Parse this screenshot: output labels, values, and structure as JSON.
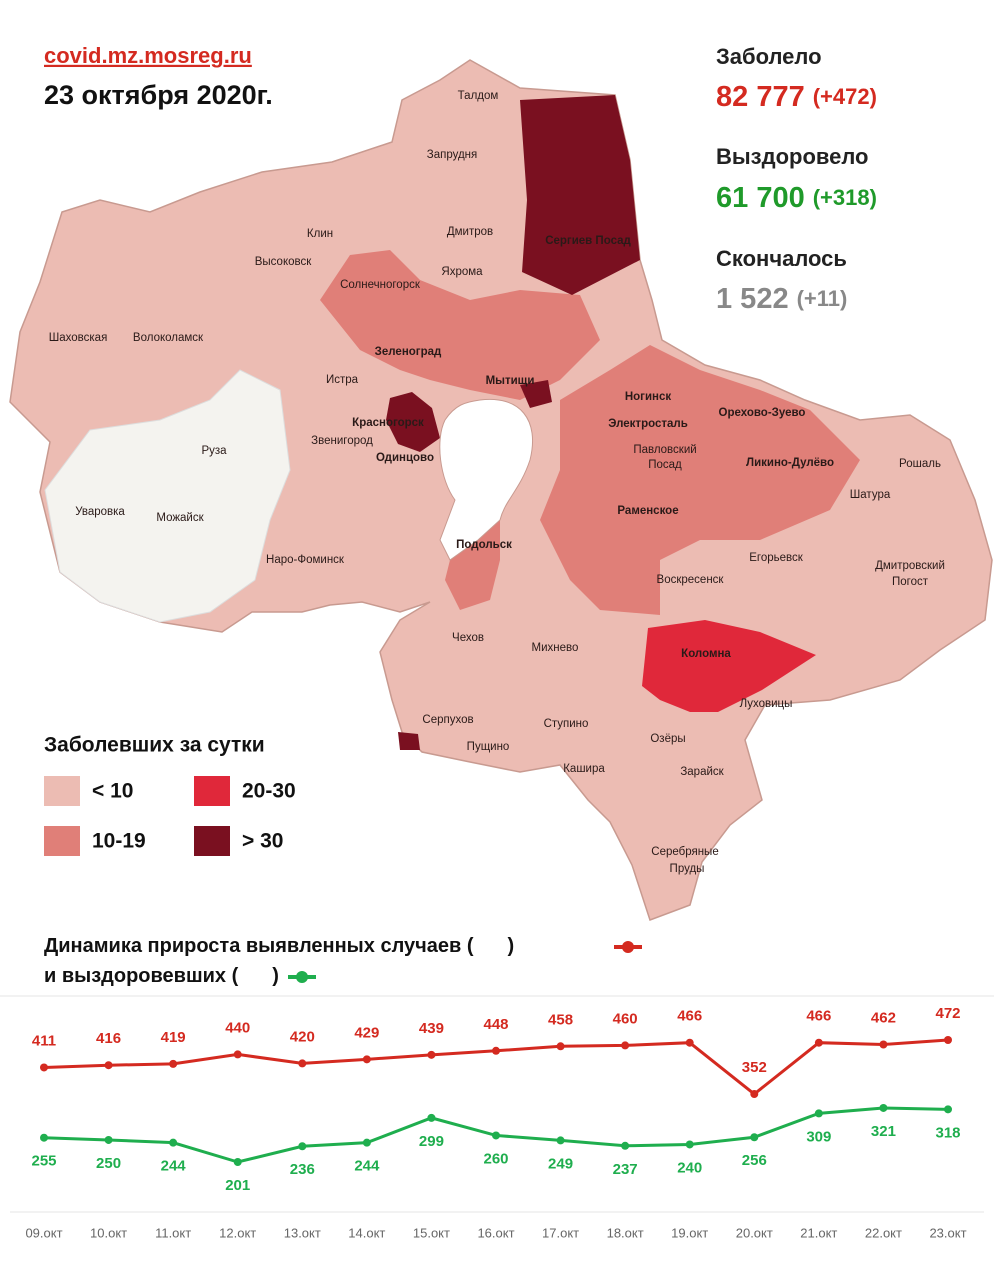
{
  "header": {
    "site": "covid.mz.mosreg.ru",
    "date": "23 октября 2020г."
  },
  "stats": [
    {
      "label": "Заболело",
      "value": "82 777",
      "delta": "(+472)"
    },
    {
      "label": "Выздоровело",
      "value": "61 700",
      "delta": "(+318)"
    },
    {
      "label": "Скончалось",
      "value": "1 522",
      "delta": "(+11)"
    }
  ],
  "map": {
    "labels": [
      "Талдом",
      "Запрудня",
      "Дмитров",
      "Клин",
      "Высоковск",
      "Яхрома",
      "Сергиев Посад",
      "Солнечногорск",
      "Шаховская",
      "Волоколамск",
      "Зеленоград",
      "Истра",
      "Мытищи",
      "Красногорск",
      "Ногинск",
      "Электросталь",
      "Орехово-Зуево",
      "Павловский",
      "Посад",
      "Ликино-Дулёво",
      "Рошаль",
      "Звенигород",
      "Одинцово",
      "Руза",
      "Уваровка",
      "Можайск",
      "Раменское",
      "Шатура",
      "Наро-Фоминск",
      "Подольск",
      "Егорьевск",
      "Воскресенск",
      "Дмитровский",
      "Погост",
      "Чехов",
      "Михнево",
      "Коломна",
      "Луховицы",
      "Серпухов",
      "Пущино",
      "Ступино",
      "Озёры",
      "Кашира",
      "Зарайск",
      "Серебряные",
      "Пруды"
    ]
  },
  "legend": {
    "title": "Заболевших за сутки",
    "items": [
      {
        "label": "< 10",
        "color": "#ecbcb3"
      },
      {
        "label": "10-19",
        "color": "#e07f78"
      },
      {
        "label": "20-30",
        "color": "#e0283a"
      },
      {
        "label": "> 30",
        "color": "#7a1020"
      }
    ]
  },
  "chart_data": {
    "type": "line",
    "title": [
      "Динамика прироста выявленных случаев (",
      ")",
      "и выздоровевших (",
      ")"
    ],
    "categories": [
      "09.окт",
      "10.окт",
      "11.окт",
      "12.окт",
      "13.окт",
      "14.окт",
      "15.окт",
      "16.окт",
      "17.окт",
      "18.окт",
      "19.окт",
      "20.окт",
      "21.окт",
      "22.окт",
      "23.окт"
    ],
    "series": [
      {
        "color": "#d42a20",
        "values": [
          411,
          416,
          419,
          440,
          420,
          429,
          439,
          448,
          458,
          460,
          466,
          352,
          466,
          462,
          472
        ]
      },
      {
        "color": "#1fae4e",
        "values": [
          255,
          250,
          244,
          201,
          236,
          244,
          299,
          260,
          249,
          237,
          240,
          256,
          309,
          321,
          318
        ]
      }
    ]
  }
}
